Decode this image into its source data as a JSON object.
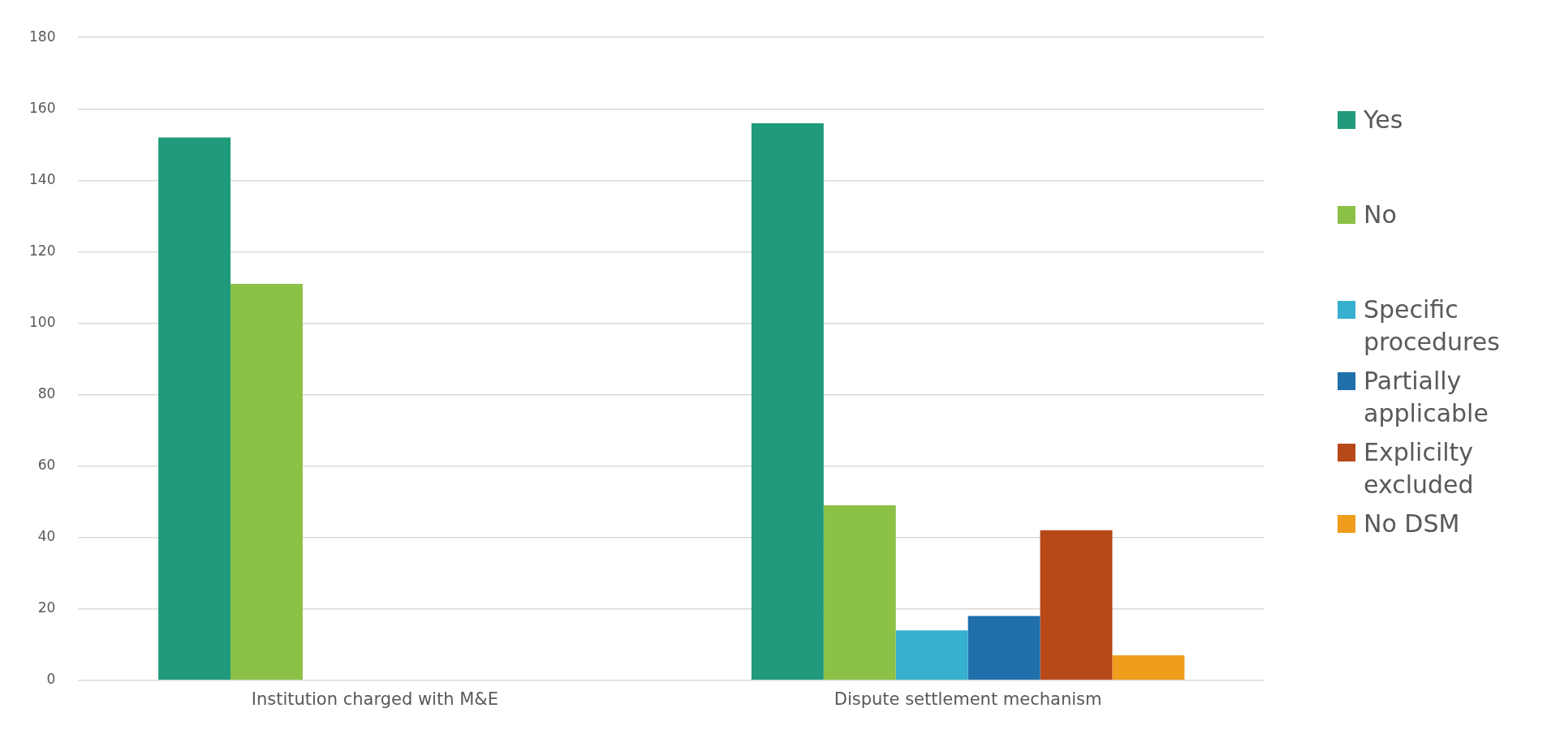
{
  "chart_data": {
    "type": "bar",
    "categories": [
      "Institution charged with M&E",
      "Dispute settlement mechanism"
    ],
    "series": [
      {
        "name": "Yes",
        "color": "#1f9a7a",
        "values": [
          152,
          156
        ]
      },
      {
        "name": "No",
        "color": "#8bc146",
        "values": [
          111,
          49
        ]
      },
      {
        "name": "Specific procedures",
        "color": "#37b0cf",
        "values": [
          null,
          14
        ]
      },
      {
        "name": "Partially applicable",
        "color": "#1f6fab",
        "values": [
          null,
          18
        ]
      },
      {
        "name": "Explicilty excluded",
        "color": "#b74919",
        "values": [
          null,
          42
        ]
      },
      {
        "name": "No DSM",
        "color": "#f09c1c",
        "values": [
          null,
          7
        ]
      }
    ],
    "ylim": [
      0,
      180
    ],
    "yticks": [
      0,
      20,
      40,
      60,
      80,
      100,
      120,
      140,
      160,
      180
    ],
    "grid": "y",
    "legend": "right"
  }
}
